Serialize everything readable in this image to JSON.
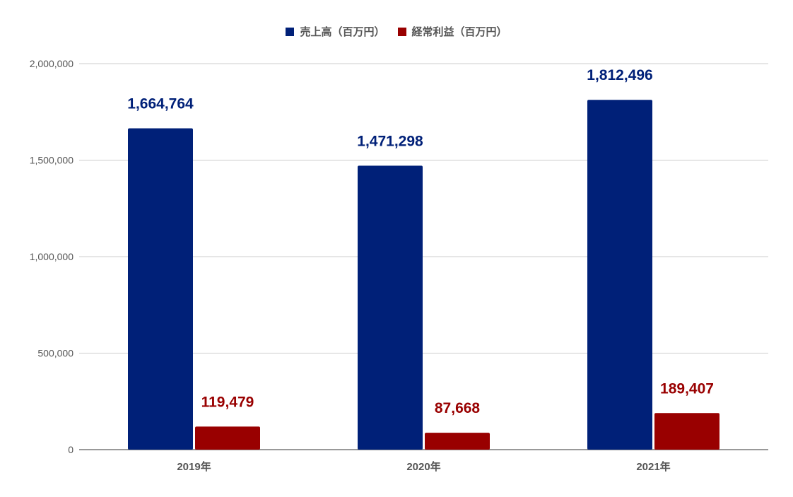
{
  "chart_data": {
    "type": "bar",
    "categories": [
      "2019年",
      "2020年",
      "2021年"
    ],
    "series": [
      {
        "name": "売上高（百万円）",
        "color": "#002078",
        "values": [
          1664764,
          1471298,
          1812496
        ],
        "labels": [
          "1,664,764",
          "1,471,298",
          "1,812,496"
        ]
      },
      {
        "name": "経常利益（百万円）",
        "color": "#990000",
        "values": [
          119479,
          87668,
          189407
        ],
        "labels": [
          "119,479",
          "87,668",
          "189,407"
        ]
      }
    ],
    "yticks": [
      "0",
      "500,000",
      "1,000,000",
      "1,500,000",
      "2,000,000"
    ],
    "ylim": [
      0,
      2000000
    ],
    "grid": true,
    "legend_position": "top"
  }
}
